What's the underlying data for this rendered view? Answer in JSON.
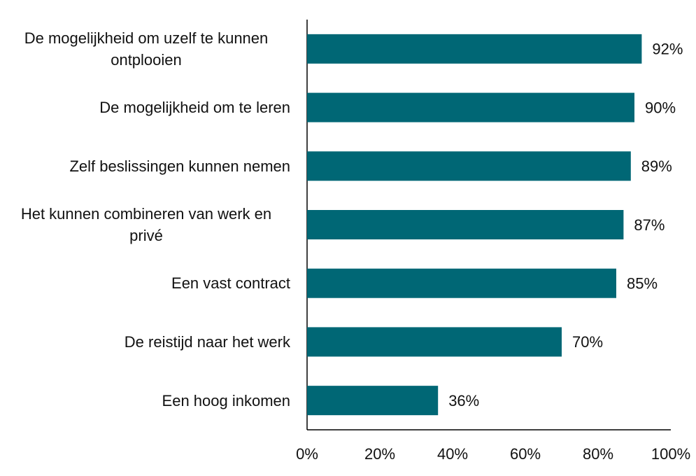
{
  "chart_data": {
    "type": "hbar",
    "categories": [
      "De mogelijkheid om uzelf te kunnen ontplooien",
      "De mogelijkheid om te leren",
      "Zelf beslissingen kunnen nemen",
      "Het kunnen combineren van werk en privé",
      "Een vast contract",
      "De reistijd naar het werk",
      "Een hoog inkomen"
    ],
    "values": [
      92,
      90,
      89,
      87,
      85,
      70,
      36
    ],
    "value_labels": [
      "92%",
      "90%",
      "89%",
      "87%",
      "85%",
      "70%",
      "36%"
    ],
    "color": "#006775",
    "xlim": [
      0,
      100
    ],
    "xticks": [
      {
        "value": 0,
        "label": "0%"
      },
      {
        "value": 20,
        "label": "20%"
      },
      {
        "value": 40,
        "label": "40%"
      },
      {
        "value": 60,
        "label": "60%"
      },
      {
        "value": 80,
        "label": "80%"
      },
      {
        "value": 100,
        "label": "100%"
      }
    ]
  }
}
